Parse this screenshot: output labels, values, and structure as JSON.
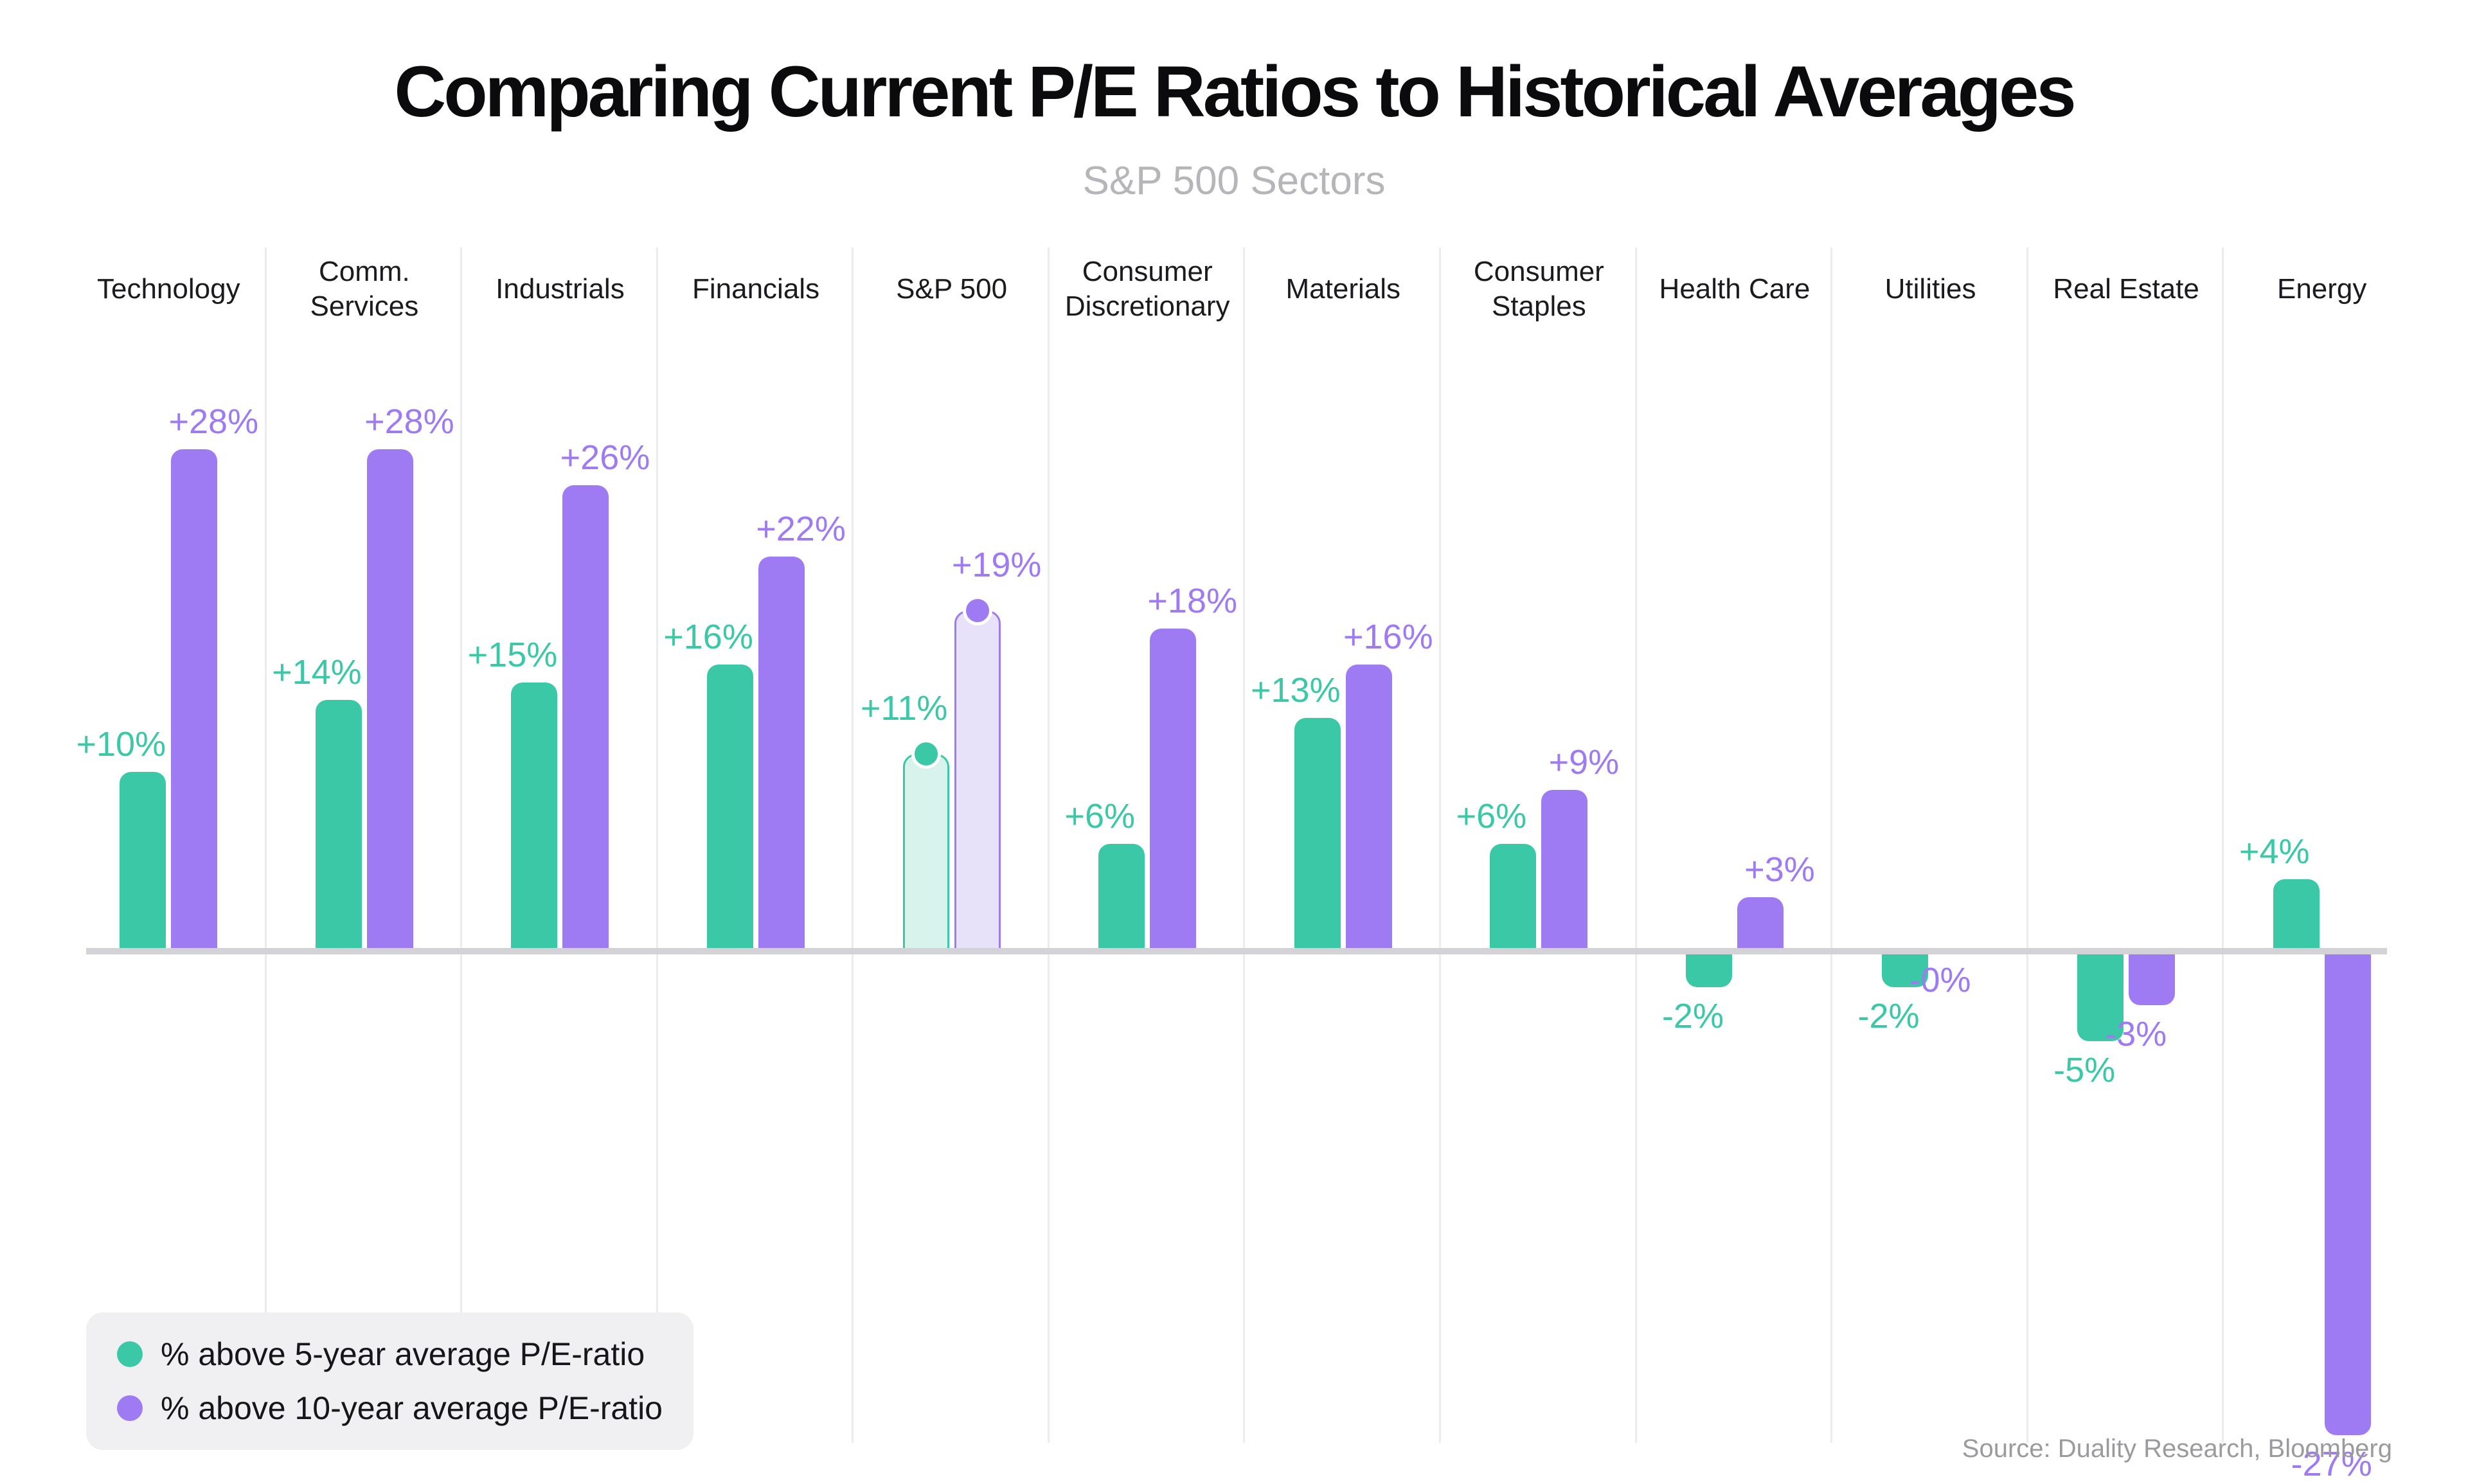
{
  "header": {
    "title": "Comparing Current P/E Ratios to Historical Averages",
    "subtitle": "S&P 500 Sectors"
  },
  "footer": {
    "source": "Source: Duality Research, Bloomberg"
  },
  "colors": {
    "green": "#3AC8A6",
    "green_light": "#D8F3EC",
    "purple": "#9E7BF2",
    "purple_light": "#E8E1FA",
    "axis": "#D3D3D7",
    "separator": "#ECECEF",
    "legend_bg": "#F0F0F3",
    "subtitle_text": "#B5B5BA",
    "source_text": "#9B9B9F"
  },
  "chart_data": {
    "type": "bar",
    "title": "Comparing Current P/E Ratios to Historical Averages",
    "subtitle": "S&P 500 Sectors",
    "categories": [
      "Technology",
      "Comm.\nServices",
      "Industrials",
      "Financials",
      "S&P 500",
      "Consumer\nDiscretionary",
      "Materials",
      "Consumer\nStaples",
      "Health Care",
      "Utilities",
      "Real Estate",
      "Energy"
    ],
    "series": [
      {
        "name": "% above 5-year average P/E-ratio",
        "color": "#3AC8A6",
        "color_light": "#D8F3EC",
        "values": [
          10,
          14,
          15,
          16,
          11,
          6,
          13,
          6,
          -2,
          -2,
          -5,
          4
        ],
        "labels": [
          "+10%",
          "+14%",
          "+15%",
          "+16%",
          "+11%",
          "+6%",
          "+13%",
          "+6%",
          "-2%",
          "-2%",
          "-5%",
          "+4%"
        ]
      },
      {
        "name": "% above 10-year average P/E-ratio",
        "color": "#9E7BF2",
        "color_light": "#E8E1FA",
        "values": [
          28,
          28,
          26,
          22,
          19,
          18,
          16,
          9,
          3,
          0,
          -3,
          -27
        ],
        "labels": [
          "+28%",
          "+28%",
          "+26%",
          "+22%",
          "+19%",
          "+18%",
          "+16%",
          "+9%",
          "+3%",
          "-0%",
          "-3%",
          "-27%"
        ]
      }
    ],
    "highlight_category": "S&P 500",
    "highlight_category_index": 4,
    "unit": "%",
    "baseline": 0,
    "ylim": [
      -28,
      30
    ],
    "grid": "vertical-column-separators",
    "legend_position": "bottom-left",
    "value_labels_shown": true
  }
}
